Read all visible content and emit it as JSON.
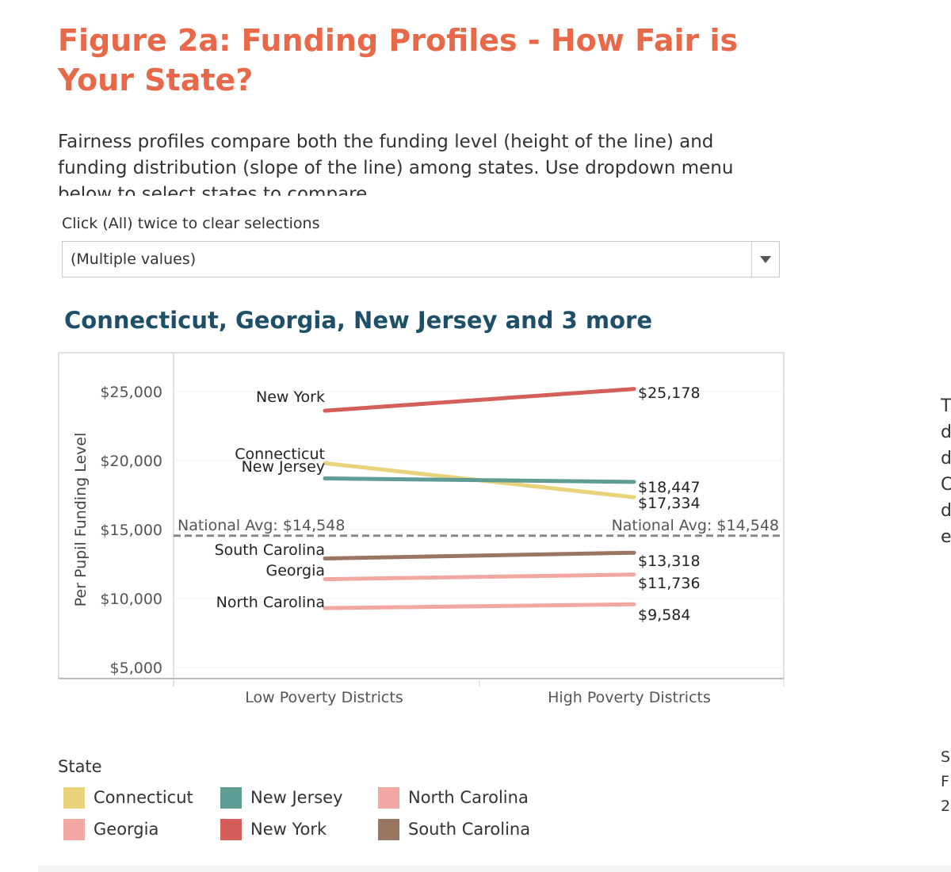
{
  "header": {
    "title": "Figure 2a: Funding Profiles - How Fair is Your State?",
    "intro": "Fairness profiles compare both the funding level (height of the line) and funding distribution (slope of the line) among states. Use dropdown menu below to select states to compare"
  },
  "filter": {
    "label": "Click (All) twice to clear selections",
    "value": "(Multiple values)"
  },
  "chart_heading": "Connecticut, Georgia, New Jersey and 3 more",
  "chart_data": {
    "type": "line",
    "categories": [
      "Low Poverty Districts",
      "High Poverty Districts"
    ],
    "ylabel": "Per Pupil Funding Level",
    "ylim": [
      4200,
      27800
    ],
    "yticks": [
      {
        "value": 25000,
        "label": "$25,000"
      },
      {
        "value": 20000,
        "label": "$20,000"
      },
      {
        "value": 15000,
        "label": "$15,000"
      },
      {
        "value": 10000,
        "label": "$10,000"
      },
      {
        "value": 5000,
        "label": "$5,000"
      }
    ],
    "reference_line": {
      "value": 14548,
      "label_left": "National Avg: $14,548",
      "label_right": "National Avg: $14,548"
    },
    "series": [
      {
        "name": "New York",
        "color": "#d45f5a",
        "values": [
          23600,
          25178
        ],
        "end_label": "$25,178"
      },
      {
        "name": "Connecticut",
        "color": "#e8d27a",
        "values": [
          19800,
          17334
        ],
        "end_label": "$17,334"
      },
      {
        "name": "New Jersey",
        "color": "#5f9c93",
        "values": [
          18700,
          18447
        ],
        "end_label": "$18,447"
      },
      {
        "name": "South Carolina",
        "color": "#9a7662",
        "values": [
          12900,
          13318
        ],
        "end_label": "$13,318"
      },
      {
        "name": "Georgia",
        "color": "#f2a8a2",
        "values": [
          11400,
          11736
        ],
        "end_label": "$11,736"
      },
      {
        "name": "North Carolina",
        "color": "#f2a8a2",
        "values": [
          9300,
          9584
        ],
        "end_label": "$9,584"
      }
    ]
  },
  "legend": {
    "title": "State",
    "items": [
      {
        "label": "Connecticut",
        "color": "#e8d27a"
      },
      {
        "label": "Georgia",
        "color": "#f2a8a2"
      },
      {
        "label": "New Jersey",
        "color": "#5f9c93"
      },
      {
        "label": "New York",
        "color": "#d45f5a"
      },
      {
        "label": "North Carolina",
        "color": "#f2a8a2"
      },
      {
        "label": "South Carolina",
        "color": "#9a7662"
      }
    ]
  },
  "side_panel": {
    "letters_top": [
      "T",
      "d",
      "d",
      "C",
      "d",
      "e"
    ],
    "letters_bottom": [
      "S",
      "F",
      "2"
    ]
  }
}
